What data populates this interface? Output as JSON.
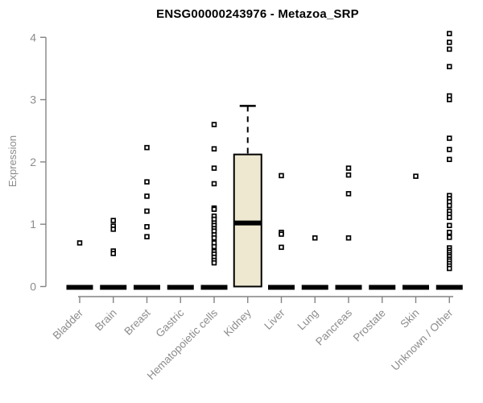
{
  "chart_data": {
    "type": "boxplot",
    "title": "ENSG00000243976 - Metazoa_SRP",
    "xlabel": "",
    "ylabel": "Expression",
    "ylim": [
      0,
      4
    ],
    "yticks": [
      0,
      1,
      2,
      3,
      4
    ],
    "grid": false,
    "legend": "none",
    "categories": [
      "Bladder",
      "Brain",
      "Breast",
      "Gastric",
      "Hematopoietic cells",
      "Kidney",
      "Liver",
      "Lung",
      "Pancreas",
      "Prostate",
      "Skin",
      "Unknown / Other"
    ],
    "groups": [
      {
        "name": "Bladder",
        "median": 0,
        "points": [
          0.7
        ]
      },
      {
        "name": "Brain",
        "median": 0,
        "points": [
          1.06,
          0.97,
          0.92,
          0.57,
          0.53
        ]
      },
      {
        "name": "Breast",
        "median": 0,
        "points": [
          2.23,
          1.68,
          1.45,
          1.21,
          0.96,
          0.8
        ]
      },
      {
        "name": "Gastric",
        "median": 0,
        "points": []
      },
      {
        "name": "Hematopoietic cells",
        "median": 0,
        "points": [
          2.6,
          2.21,
          1.9,
          1.65,
          1.26,
          1.24,
          1.13,
          1.08,
          1.02,
          0.98,
          0.93,
          0.89,
          0.83,
          0.78,
          0.7,
          0.64,
          0.56,
          0.52,
          0.47,
          0.42,
          0.38
        ]
      },
      {
        "name": "Kidney",
        "median": 1.02,
        "points": [],
        "box": {
          "q1": 0,
          "median": 1.02,
          "q3": 2.12,
          "whisker_high": 2.9
        }
      },
      {
        "name": "Liver",
        "median": 0,
        "points": [
          1.78,
          0.87,
          0.84,
          0.63
        ]
      },
      {
        "name": "Lung",
        "median": 0,
        "points": [
          0.78
        ]
      },
      {
        "name": "Pancreas",
        "median": 0,
        "points": [
          1.9,
          1.79,
          1.49,
          0.78
        ]
      },
      {
        "name": "Prostate",
        "median": 0,
        "points": []
      },
      {
        "name": "Skin",
        "median": 0,
        "points": [
          1.77
        ]
      },
      {
        "name": "Unknown / Other",
        "median": 0,
        "points": [
          4.06,
          3.92,
          3.81,
          3.53,
          3.06,
          3.0,
          2.38,
          2.2,
          2.04,
          1.46,
          1.41,
          1.36,
          1.3,
          1.21,
          1.16,
          1.11,
          0.98,
          0.87,
          0.79,
          0.62,
          0.58,
          0.55,
          0.51,
          0.48,
          0.44,
          0.41,
          0.37,
          0.33,
          0.29
        ]
      }
    ],
    "colors": {
      "box_fill": "#EDE8CF",
      "box_stroke": "#000000",
      "median_bar": "#000000",
      "point_stroke": "#000000",
      "point_fill": "#ffffff",
      "axis_line": "#848484",
      "tick_label": "#8c8c8c",
      "title": "#000000"
    }
  }
}
